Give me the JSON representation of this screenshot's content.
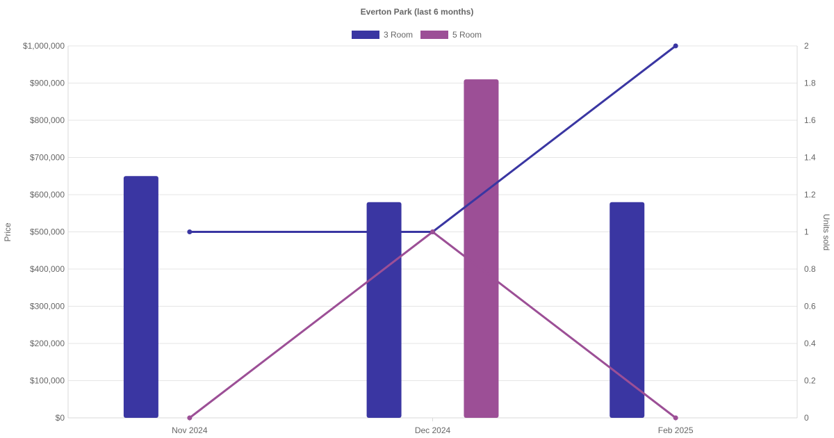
{
  "chart_data": {
    "type": "bar",
    "title": "Everton Park (last 6 months)",
    "categories": [
      "Nov 2024",
      "Dec 2024",
      "Feb 2025"
    ],
    "y_left": {
      "label": "Price",
      "min": 0,
      "max": 1000000,
      "step": 100000,
      "tick_labels": [
        "$0",
        "$100,000",
        "$200,000",
        "$300,000",
        "$400,000",
        "$500,000",
        "$600,000",
        "$700,000",
        "$800,000",
        "$900,000",
        "$1,000,000"
      ]
    },
    "y_right": {
      "label": "Units sold",
      "min": 0,
      "max": 2,
      "step": 0.2,
      "tick_labels": [
        "0",
        "0.2",
        "0.4",
        "0.6",
        "0.8",
        "1",
        "1.2",
        "1.4",
        "1.6",
        "1.8",
        "2"
      ]
    },
    "grid": true,
    "legend": {
      "position": "top",
      "items": [
        {
          "label": "3 Room",
          "color": "#3a36a2"
        },
        {
          "label": "5 Room",
          "color": "#9c4f96"
        }
      ]
    },
    "series": [
      {
        "name": "3 Room",
        "color": "#3a36a2",
        "bar_values": [
          650000,
          580000,
          580000
        ],
        "line_values": [
          1,
          1,
          2
        ]
      },
      {
        "name": "5 Room",
        "color": "#9c4f96",
        "bar_values": [
          null,
          910000,
          null
        ],
        "line_values": [
          0,
          1,
          0
        ]
      }
    ]
  }
}
